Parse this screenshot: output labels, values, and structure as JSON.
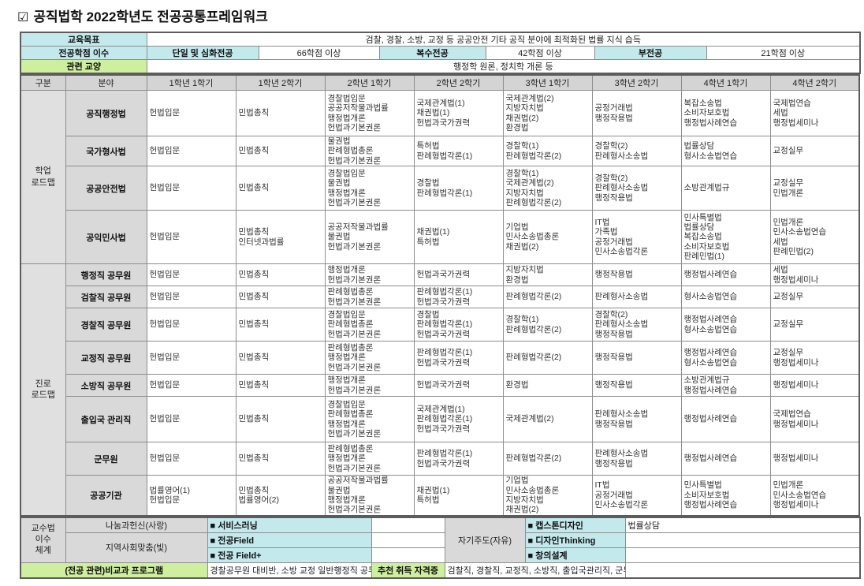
{
  "title": {
    "icon": "☑",
    "text": "공직법학 2022학년도 전공공통프레임워크"
  },
  "colors": {
    "cyan": "#c3e9ed",
    "green": "#cdef9e",
    "grey": "#d9d9d9",
    "border": "#8d8d8d"
  },
  "top": {
    "goal_label": "교육목표",
    "goal_value": "검찰, 경찰, 소방, 교정 등 공공안전 기타 공직 분야에 최적화된 법률 지식 습득",
    "credits_label": "전공학점 이수",
    "credits": [
      {
        "label": "단일 및 심화전공",
        "value": "66학점 이상"
      },
      {
        "label": "복수전공",
        "value": "42학점 이상"
      },
      {
        "label": "부전공",
        "value": "21학점 이상"
      }
    ],
    "liberal_label": "관련 교양",
    "liberal_value": "행정학 원론, 정치학 개론 등"
  },
  "table": {
    "headers": [
      "구분",
      "분야",
      "1학년 1학기",
      "1학년 2학기",
      "2학년 1학기",
      "2학년 2학기",
      "3학년 1학기",
      "3학년 2학기",
      "4학년 1학기",
      "4학년 2학기"
    ],
    "groups": [
      {
        "label_lines": [
          "학업",
          "로드맵"
        ],
        "rows": [
          {
            "field": "공직행정법",
            "cells": [
              [
                "헌법입문"
              ],
              [
                "민법총칙"
              ],
              [
                "경찰법입문",
                "공공저작물과법률",
                "행정법개론",
                "헌법과기본권론"
              ],
              [
                "국제관계법(1)",
                "채권법(1)",
                "헌법과국가권력"
              ],
              [
                "국제관계법(2)",
                "지방자치법",
                "채권법(2)",
                "환경법"
              ],
              [
                "공정거래법",
                "행정작용법"
              ],
              [
                "복잡소송법",
                "소비자보호법",
                "행정법사례연습"
              ],
              [
                "국제법연습",
                "세법",
                "행정법세미나"
              ]
            ]
          },
          {
            "field": "국가형사법",
            "cells": [
              [
                "헌법입문"
              ],
              [
                "민법총칙"
              ],
              [
                "물권법",
                "판례형법총론",
                "헌법과기본권론"
              ],
              [
                "특허법",
                "판례형법각론(1)"
              ],
              [
                "경찰학(1)",
                "판례형법각론(2)"
              ],
              [
                "경찰학(2)",
                "판례형사소송법"
              ],
              [
                "법률상담",
                "형사소송법연습"
              ],
              [
                "교정실무"
              ]
            ]
          },
          {
            "field": "공공안전법",
            "cells": [
              [
                "헌법입문"
              ],
              [
                "민법총칙"
              ],
              [
                "경찰법입문",
                "물권법",
                "행정법개론",
                "헌법과기본권론"
              ],
              [
                "경찰법",
                "판례형법각론(1)"
              ],
              [
                "경찰학(1)",
                "국제관계법(2)",
                "지방자치법",
                "판례형법각론(2)"
              ],
              [
                "경찰학(2)",
                "판례형사소송법",
                "행정작용법"
              ],
              [
                "소방관계법규"
              ],
              [
                "교정실무",
                "민법개론"
              ]
            ]
          },
          {
            "field": "공익민사법",
            "cells": [
              [
                "헌법입문"
              ],
              [
                "민법총칙",
                "인터넷과법률"
              ],
              [
                "공공저작물과법률",
                "물권법",
                "헌법과기본권론"
              ],
              [
                "채권법(1)",
                "특허법"
              ],
              [
                "기업법",
                "민사소송법총론",
                "채권법(2)"
              ],
              [
                "IT법",
                "가족법",
                "공정거래법",
                "민사소송법각론"
              ],
              [
                "민사특별법",
                "법률상담",
                "복잡소송법",
                "소비자보호법",
                "판례민법(1)"
              ],
              [
                "민법개론",
                "민사소송법연습",
                "세법",
                "판례민법(2)"
              ]
            ]
          }
        ]
      },
      {
        "label_lines": [
          "진로",
          "로드맵"
        ],
        "rows": [
          {
            "field": "행정직 공무원",
            "cells": [
              [
                "헌법입문"
              ],
              [
                "민법총칙"
              ],
              [
                "행정법개론",
                "헌법과기본권론"
              ],
              [
                "헌법과국가권력"
              ],
              [
                "지방자치법",
                "환경법"
              ],
              [
                "행정작용법"
              ],
              [
                "행정법사례연습"
              ],
              [
                "세법",
                "행정법세미나"
              ]
            ]
          },
          {
            "field": "검찰직 공무원",
            "cells": [
              [
                "헌법입문"
              ],
              [
                "민법총칙"
              ],
              [
                "판례형법총론",
                "헌법과기본권론"
              ],
              [
                "판례형법각론(1)",
                "헌법과국가권력"
              ],
              [
                "판례형법각론(2)"
              ],
              [
                "판례형사소송법"
              ],
              [
                "형사소송법연습"
              ],
              [
                "교정실무"
              ]
            ]
          },
          {
            "field": "경찰직 공무원",
            "cells": [
              [
                "헌법입문"
              ],
              [
                "민법총칙"
              ],
              [
                "경찰법입문",
                "판례형법총론",
                "헌법과기본권론"
              ],
              [
                "경찰법",
                "판례형법각론(1)",
                "헌법과국가권력"
              ],
              [
                "경찰학(1)",
                "판례형법각론(2)"
              ],
              [
                "경찰학(2)",
                "판례형사소송법",
                "행정작용법"
              ],
              [
                "행정법사례연습",
                "형사소송법연습"
              ],
              [
                "교정실무"
              ]
            ]
          },
          {
            "field": "교정직 공무원",
            "cells": [
              [
                "헌법입문"
              ],
              [
                "민법총칙"
              ],
              [
                "판례형법총론",
                "행정법개론",
                "헌법과기본권론"
              ],
              [
                "판례형법각론(1)",
                "헌법과국가권력"
              ],
              [
                "판례형법각론(2)"
              ],
              [
                "행정작용법"
              ],
              [
                "행정법사례연습",
                "형사소송법연습"
              ],
              [
                "교정실무",
                "행정법세미나"
              ]
            ]
          },
          {
            "field": "소방직 공무원",
            "cells": [
              [
                "헌법입문"
              ],
              [
                "민법총칙"
              ],
              [
                "행정법개론",
                "헌법과기본권론"
              ],
              [
                "헌법과국가권력"
              ],
              [
                "환경법"
              ],
              [
                "행정작용법"
              ],
              [
                "소방관계법규",
                "행정법사례연습"
              ],
              [
                "행정법세미나"
              ]
            ]
          },
          {
            "field": "출입국 관리직",
            "cells": [
              [
                "헌법입문"
              ],
              [
                "민법총칙"
              ],
              [
                "경찰법입문",
                "판례형법총론",
                "행정법개론",
                "헌법과기본권론"
              ],
              [
                "국제관계법(1)",
                "판례형법각론(1)",
                "헌법과국가권력"
              ],
              [
                "국제관계법(2)"
              ],
              [
                "판례형사소송법",
                "행정작용법"
              ],
              [
                "행정법사례연습"
              ],
              [
                "국제법연습",
                "행정법세미나"
              ]
            ]
          },
          {
            "field": "군무원",
            "cells": [
              [
                "헌법입문"
              ],
              [
                "민법총칙"
              ],
              [
                "판례형법총론",
                "행정법개론",
                "헌법과기본권론"
              ],
              [
                "판례형법각론(1)",
                "헌법과국가권력"
              ],
              [
                "판례형법각론(2)"
              ],
              [
                "판례형사소송법",
                "행정작용법"
              ],
              [
                "행정법사례연습"
              ],
              [
                "행정법세미나"
              ]
            ]
          },
          {
            "field": "공공기관",
            "cells": [
              [
                "법률영어(1)",
                "헌법입문"
              ],
              [
                "민법총칙",
                "법률영어(2)"
              ],
              [
                "공공저작물과법률",
                "물권법",
                "행정법개론",
                "헌법과기본권론"
              ],
              [
                "채권법(1)",
                "특허법"
              ],
              [
                "기업법",
                "민사소송법총론",
                "지방자치법",
                "채권법(2)"
              ],
              [
                "IT법",
                "공정거래법",
                "민사소송법각론"
              ],
              [
                "민사특별법",
                "소비자보호법",
                "행정법사례연습"
              ],
              [
                "민법개론",
                "민사소송법연습",
                "행정법세미나"
              ]
            ]
          }
        ]
      }
    ]
  },
  "bottom": {
    "system_label_lines": [
      "교수법",
      "이수",
      "체계"
    ],
    "left_groups": [
      {
        "label": "나눔과헌신(사랑)",
        "items": [
          "■  서비스러닝"
        ]
      },
      {
        "label": "지역사회맞춤(빛)",
        "items": [
          "■  전공Field",
          "■  전공 Field+"
        ]
      }
    ],
    "right_group": {
      "label": "자기주도(자유)",
      "items": [
        "■  캡스톤디자인",
        "■  디자인Thinking",
        "■  창의설계"
      ],
      "note": "법률상담"
    },
    "extra": {
      "label": "(전공 관련)비교과 프로그램",
      "value": "경찰공무원 대비반, 소방 교정 일반행정직 공무원 대비반"
    },
    "cert": {
      "label": "추천 취득 자격증",
      "value": "검찰직, 경찰직, 교정직, 소방직, 출입국관리직, 군무원, 일반행정직 공무원 진출"
    }
  }
}
